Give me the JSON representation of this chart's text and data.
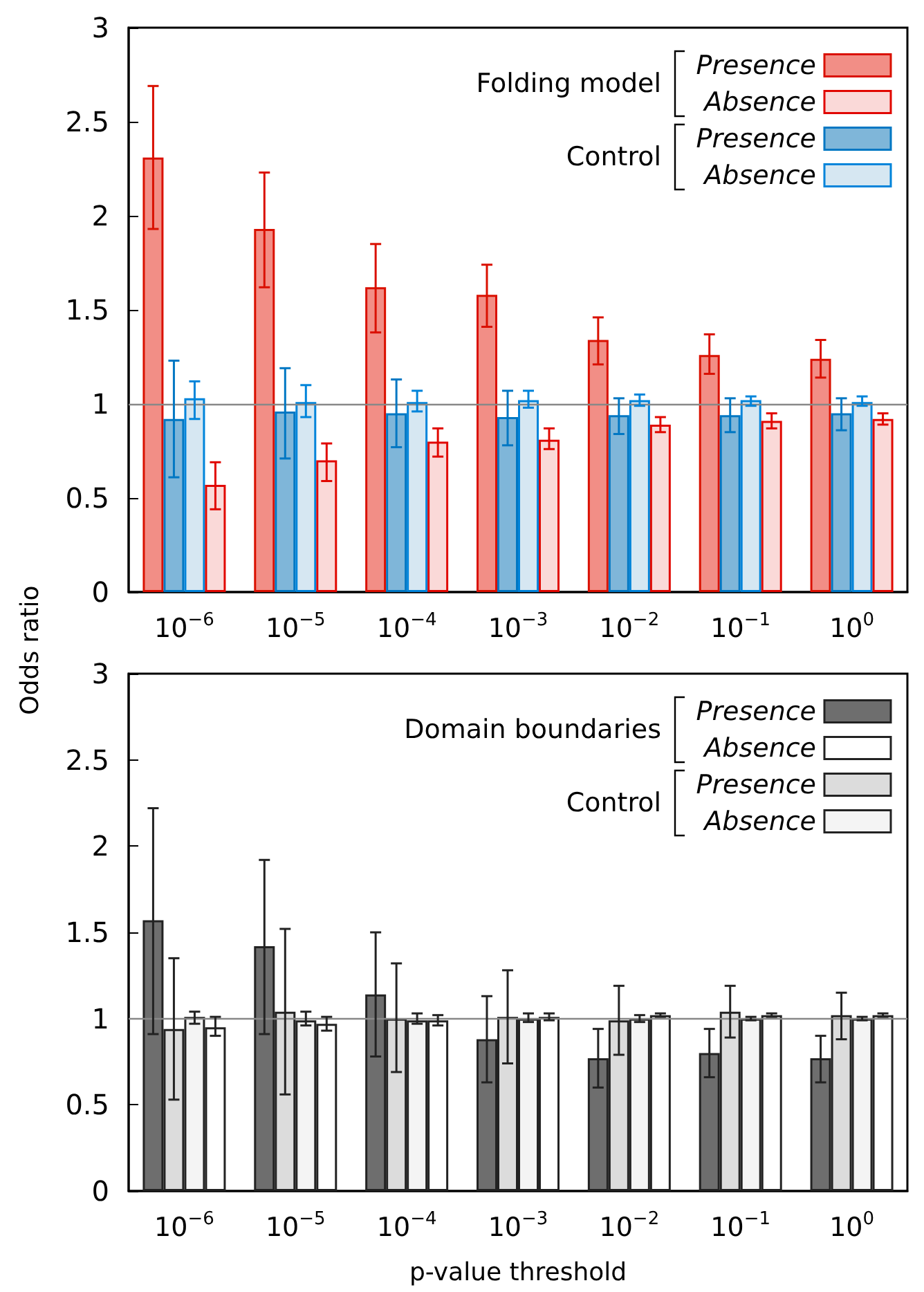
{
  "chart_data": [
    {
      "type": "bar",
      "ylabel": "Odds ratio",
      "categories": [
        "10$^{−6}$",
        "10$^{−5}$",
        "10$^{−4}$",
        "10$^{−3}$",
        "10$^{−2}$",
        "10$^{−1}$",
        "10$^{0}$"
      ],
      "ylim": [
        0,
        3
      ],
      "yticks": [
        0,
        0.5,
        1,
        1.5,
        2,
        2.5,
        3
      ],
      "legend": "top right",
      "annotations": [
        "Folding model",
        "Control"
      ],
      "ref_lines": [
        {
          "axis": "y",
          "value": 1,
          "color": "#888888"
        }
      ],
      "series": [
        {
          "name": "Presence",
          "color": "#f28e86",
          "values": [
            2.31,
            1.93,
            1.62,
            1.58,
            1.34,
            1.26,
            1.24
          ],
          "errors": [
            [
              1.93,
              2.69
            ],
            [
              1.62,
              2.23
            ],
            [
              1.38,
              1.85
            ],
            [
              1.41,
              1.74
            ],
            [
              1.21,
              1.46
            ],
            [
              1.16,
              1.37
            ],
            [
              1.14,
              1.34
            ]
          ]
        },
        {
          "name": "Presence",
          "color": "#7fb6d9",
          "values": [
            0.92,
            0.96,
            0.95,
            0.93,
            0.94,
            0.94,
            0.95
          ],
          "errors": [
            [
              0.61,
              1.23
            ],
            [
              0.71,
              1.19
            ],
            [
              0.77,
              1.13
            ],
            [
              0.78,
              1.07
            ],
            [
              0.84,
              1.03
            ],
            [
              0.85,
              1.03
            ],
            [
              0.86,
              1.03
            ]
          ]
        },
        {
          "name": "Absence",
          "color": "#d6e7f2",
          "values": [
            1.03,
            1.01,
            1.01,
            1.02,
            1.02,
            1.02,
            1.01
          ],
          "errors": [
            [
              0.92,
              1.12
            ],
            [
              0.93,
              1.1
            ],
            [
              0.96,
              1.07
            ],
            [
              0.98,
              1.07
            ],
            [
              0.99,
              1.05
            ],
            [
              0.99,
              1.04
            ],
            [
              0.99,
              1.04
            ]
          ]
        },
        {
          "name": "Absence",
          "color": "#fad9d8",
          "values": [
            0.57,
            0.7,
            0.8,
            0.81,
            0.89,
            0.91,
            0.92
          ],
          "errors": [
            [
              0.44,
              0.69
            ],
            [
              0.59,
              0.79
            ],
            [
              0.72,
              0.87
            ],
            [
              0.76,
              0.87
            ],
            [
              0.85,
              0.93
            ],
            [
              0.87,
              0.95
            ],
            [
              0.89,
              0.95
            ]
          ]
        }
      ]
    },
    {
      "type": "bar",
      "xlabel": "p-value threshold",
      "categories": [
        "10$^{−6}$",
        "10$^{−5}$",
        "10$^{−4}$",
        "10$^{−3}$",
        "10$^{−2}$",
        "10$^{−1}$",
        "10$^{0}$"
      ],
      "ylim": [
        0,
        3
      ],
      "yticks": [
        0,
        0.5,
        1,
        1.5,
        2,
        2.5,
        3
      ],
      "legend": "top right",
      "annotations": [
        "Domain boundaries",
        "Control"
      ],
      "ref_lines": [
        {
          "axis": "y",
          "value": 1,
          "color": "#888888"
        }
      ],
      "series": [
        {
          "name": "Presence",
          "color": "#6e6e6e",
          "values": [
            1.57,
            1.42,
            1.14,
            0.88,
            0.77,
            0.8,
            0.77
          ],
          "errors": [
            [
              0.91,
              2.22
            ],
            [
              0.91,
              1.92
            ],
            [
              0.78,
              1.5
            ],
            [
              0.63,
              1.13
            ],
            [
              0.6,
              0.94
            ],
            [
              0.66,
              0.94
            ],
            [
              0.63,
              0.9
            ]
          ]
        },
        {
          "name": "Presence",
          "color": "#dcdcdc",
          "values": [
            0.94,
            1.04,
            1.0,
            1.01,
            0.99,
            1.04,
            1.02
          ],
          "errors": [
            [
              0.53,
              1.35
            ],
            [
              0.56,
              1.52
            ],
            [
              0.69,
              1.32
            ],
            [
              0.74,
              1.28
            ],
            [
              0.79,
              1.19
            ],
            [
              0.89,
              1.19
            ],
            [
              0.88,
              1.15
            ]
          ]
        },
        {
          "name": "Absence",
          "color": "#f4f4f4",
          "values": [
            1.01,
            0.99,
            0.99,
            1.0,
            1.0,
            1.0,
            1.0
          ],
          "errors": [
            [
              0.97,
              1.04
            ],
            [
              0.96,
              1.04
            ],
            [
              0.97,
              1.03
            ],
            [
              0.98,
              1.03
            ],
            [
              0.98,
              1.02
            ],
            [
              0.99,
              1.01
            ],
            [
              0.99,
              1.01
            ]
          ]
        },
        {
          "name": "Absence",
          "color": "#ffffff",
          "values": [
            0.95,
            0.97,
            0.99,
            1.01,
            1.02,
            1.02,
            1.02
          ],
          "errors": [
            [
              0.9,
              1.01
            ],
            [
              0.93,
              1.01
            ],
            [
              0.96,
              1.02
            ],
            [
              0.99,
              1.03
            ],
            [
              1.01,
              1.03
            ],
            [
              1.01,
              1.03
            ],
            [
              1.01,
              1.03
            ]
          ]
        }
      ]
    }
  ]
}
